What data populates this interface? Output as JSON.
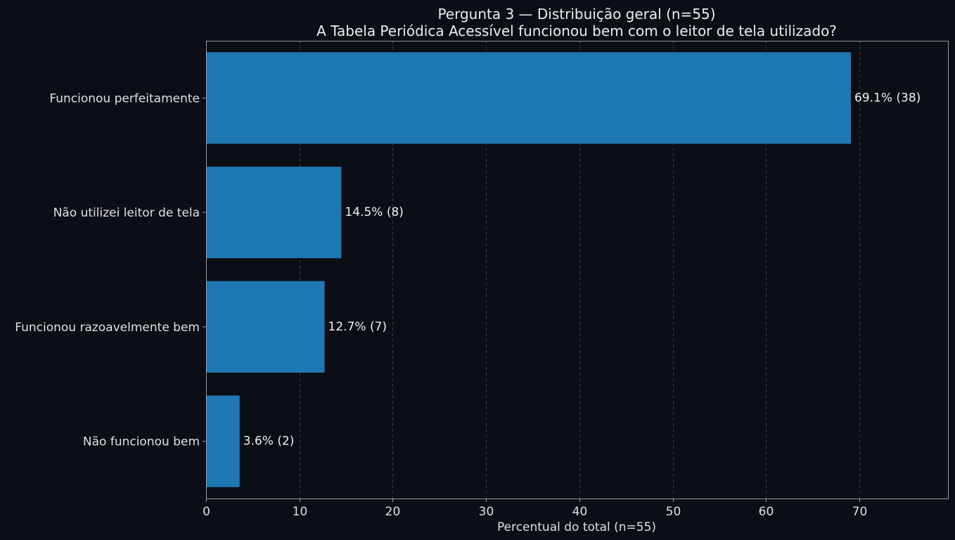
{
  "chart_data": {
    "type": "bar",
    "orientation": "horizontal",
    "title": "Pergunta 3 — Distribuição geral (n=55)",
    "subtitle": "A Tabela Periódica Acessível funcionou bem com o leitor de tela utilizado?",
    "xlabel": "Percentual do total (n=55)",
    "ylabel": "",
    "categories": [
      "Funcionou perfeitamente",
      "Não utilizei leitor de tela",
      "Funcionou razoavelmente bem",
      "Não funcionou bem"
    ],
    "values": [
      69.1,
      14.5,
      12.7,
      3.6
    ],
    "counts": [
      38,
      8,
      7,
      2
    ],
    "data_labels": [
      "69.1% (38)",
      "14.5% (8)",
      "12.7% (7)",
      "3.6% (2)"
    ],
    "xlim": [
      0,
      79.5
    ],
    "xticks": [
      0,
      10,
      20,
      30,
      40,
      50,
      60,
      70
    ],
    "xtick_labels": [
      "0",
      "10",
      "20",
      "30",
      "40",
      "50",
      "60",
      "70"
    ],
    "grid": "x-dashed",
    "legend": "none",
    "colors": {
      "background": "#0b0e14",
      "bar": "#1f77b4",
      "grid": "#3a3f4a",
      "spine": "#9a9a9a",
      "text": "#e0e0e0"
    }
  }
}
